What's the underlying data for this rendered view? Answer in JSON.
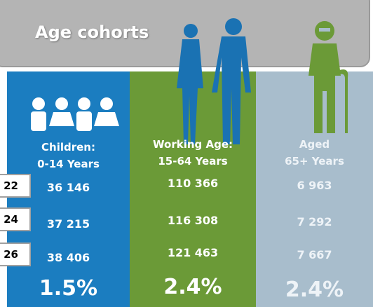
{
  "title": "Age cohorts",
  "row_labels": [
    "22",
    "24",
    "26"
  ],
  "columns": [
    {
      "header": [
        "Children:",
        "0-14 Years"
      ],
      "values": [
        "36 146",
        "37 215",
        "38 406"
      ],
      "growth": "1.5%"
    },
    {
      "header": [
        "Working Age:",
        "15-64 Years"
      ],
      "values": [
        "110 366",
        "116 308",
        "121 463"
      ],
      "growth": "2.4%"
    },
    {
      "header": [
        "Aged",
        "65+ Years"
      ],
      "values": [
        "6 963",
        "7 292",
        "7 667"
      ],
      "growth": "2.4%"
    }
  ]
}
